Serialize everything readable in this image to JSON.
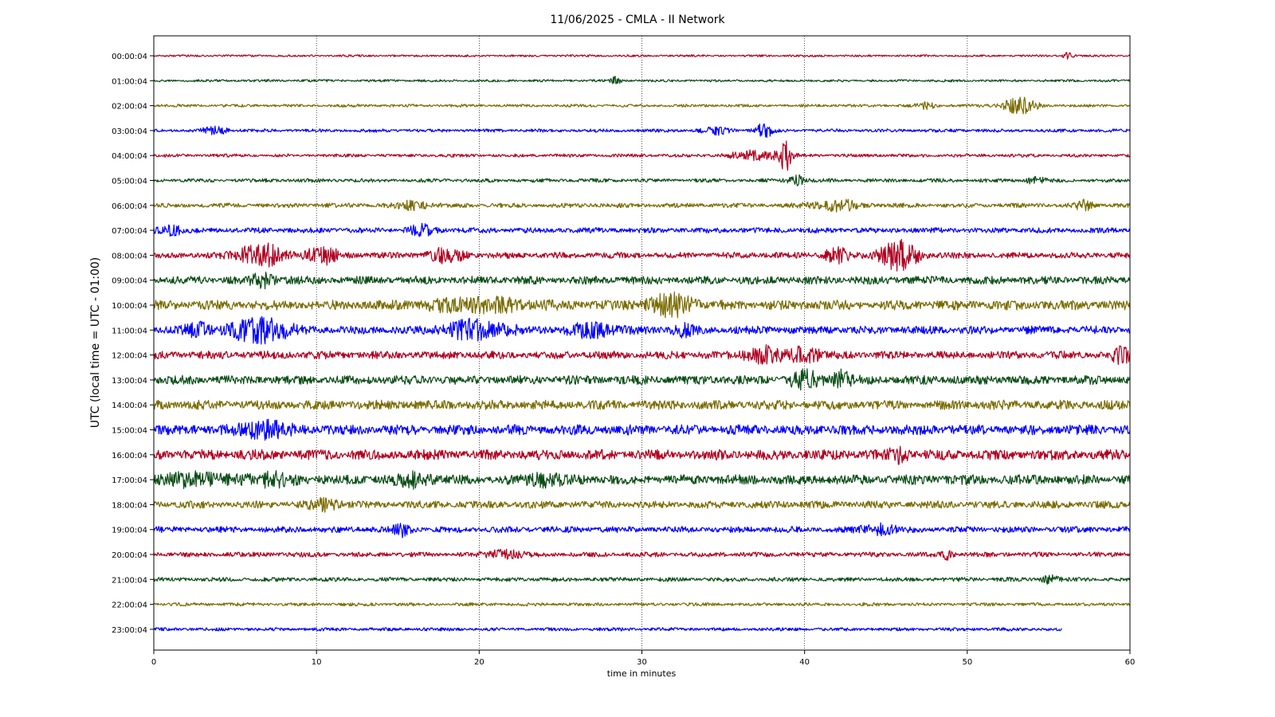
{
  "chart_data": {
    "type": "line",
    "title": "11/06/2025 - CMLA - II Network",
    "xlabel": "time in minutes",
    "ylabel": "UTC (local time = UTC - 01:00)",
    "xlim": [
      0,
      60
    ],
    "x_ticks": [
      "0",
      "10",
      "20",
      "30",
      "40",
      "50",
      "60"
    ],
    "grid": "vertical dotted lines at each x tick",
    "trace_colors": [
      "#b00020",
      "#0b4d16",
      "#7a6b00",
      "#0000ff"
    ],
    "rows": [
      {
        "label": "00:00:04",
        "color": "#b00020",
        "noise": 0.25,
        "end_minute": 60,
        "events": [
          {
            "minute": 56.2,
            "amp": 1.2,
            "width": 0.3
          }
        ]
      },
      {
        "label": "01:00:04",
        "color": "#0b4d16",
        "noise": 0.3,
        "end_minute": 60,
        "events": [
          {
            "minute": 28.4,
            "amp": 1.0,
            "width": 0.3
          }
        ]
      },
      {
        "label": "02:00:04",
        "color": "#7a6b00",
        "noise": 0.35,
        "end_minute": 60,
        "events": [
          {
            "minute": 47.5,
            "amp": 0.9,
            "width": 0.5
          },
          {
            "minute": 53.2,
            "amp": 2.4,
            "width": 1.0
          }
        ]
      },
      {
        "label": "03:00:04",
        "color": "#0000ff",
        "noise": 0.4,
        "end_minute": 60,
        "events": [
          {
            "minute": 3.8,
            "amp": 1.3,
            "width": 0.7
          },
          {
            "minute": 34.5,
            "amp": 1.1,
            "width": 0.8
          },
          {
            "minute": 37.5,
            "amp": 2.2,
            "width": 0.5
          }
        ]
      },
      {
        "label": "04:00:04",
        "color": "#b00020",
        "noise": 0.4,
        "end_minute": 60,
        "events": [
          {
            "minute": 37.0,
            "amp": 1.3,
            "width": 1.5
          },
          {
            "minute": 38.8,
            "amp": 4.5,
            "width": 0.4
          }
        ]
      },
      {
        "label": "05:00:04",
        "color": "#0b4d16",
        "noise": 0.45,
        "end_minute": 60,
        "events": [
          {
            "minute": 39.5,
            "amp": 1.6,
            "width": 0.5
          },
          {
            "minute": 54.2,
            "amp": 1.2,
            "width": 0.5
          }
        ]
      },
      {
        "label": "06:00:04",
        "color": "#7a6b00",
        "noise": 0.55,
        "end_minute": 60,
        "events": [
          {
            "minute": 16.0,
            "amp": 1.1,
            "width": 1.0
          },
          {
            "minute": 42.0,
            "amp": 1.4,
            "width": 1.5
          },
          {
            "minute": 57.2,
            "amp": 1.4,
            "width": 0.5
          }
        ]
      },
      {
        "label": "07:00:04",
        "color": "#0000ff",
        "noise": 0.65,
        "end_minute": 60,
        "events": [
          {
            "minute": 1.0,
            "amp": 1.2,
            "width": 0.8
          },
          {
            "minute": 16.5,
            "amp": 1.3,
            "width": 0.8
          }
        ]
      },
      {
        "label": "08:00:04",
        "color": "#b00020",
        "noise": 0.75,
        "end_minute": 60,
        "events": [
          {
            "minute": 6.5,
            "amp": 3.6,
            "width": 1.3
          },
          {
            "minute": 10.3,
            "amp": 2.4,
            "width": 1.0
          },
          {
            "minute": 18.0,
            "amp": 2.0,
            "width": 1.0
          },
          {
            "minute": 42.0,
            "amp": 1.8,
            "width": 0.8
          },
          {
            "minute": 45.8,
            "amp": 4.0,
            "width": 1.2
          }
        ]
      },
      {
        "label": "09:00:04",
        "color": "#0b4d16",
        "noise": 1.0,
        "end_minute": 60,
        "events": [
          {
            "minute": 6.8,
            "amp": 1.6,
            "width": 0.8
          }
        ]
      },
      {
        "label": "10:00:04",
        "color": "#7a6b00",
        "noise": 1.2,
        "end_minute": 60,
        "events": [
          {
            "minute": 31.8,
            "amp": 2.6,
            "width": 1.5
          },
          {
            "minute": 20.0,
            "amp": 1.5,
            "width": 3.0
          }
        ]
      },
      {
        "label": "11:00:04",
        "color": "#0000ff",
        "noise": 1.0,
        "end_minute": 60,
        "events": [
          {
            "minute": 2.8,
            "amp": 1.9,
            "width": 0.8
          },
          {
            "minute": 6.5,
            "amp": 3.4,
            "width": 1.8
          },
          {
            "minute": 19.8,
            "amp": 2.4,
            "width": 2.0
          },
          {
            "minute": 27.0,
            "amp": 1.6,
            "width": 1.5
          },
          {
            "minute": 32.5,
            "amp": 1.5,
            "width": 0.6
          }
        ]
      },
      {
        "label": "12:00:04",
        "color": "#b00020",
        "noise": 0.95,
        "end_minute": 60,
        "events": [
          {
            "minute": 37.5,
            "amp": 2.1,
            "width": 1.2
          },
          {
            "minute": 40.0,
            "amp": 2.0,
            "width": 1.0
          },
          {
            "minute": 59.5,
            "amp": 2.0,
            "width": 0.6
          }
        ]
      },
      {
        "label": "13:00:04",
        "color": "#0b4d16",
        "noise": 1.1,
        "end_minute": 60,
        "events": [
          {
            "minute": 40.0,
            "amp": 2.2,
            "width": 1.0
          },
          {
            "minute": 42.3,
            "amp": 2.5,
            "width": 0.6
          }
        ]
      },
      {
        "label": "14:00:04",
        "color": "#7a6b00",
        "noise": 1.15,
        "end_minute": 60,
        "events": []
      },
      {
        "label": "15:00:04",
        "color": "#0000ff",
        "noise": 1.25,
        "end_minute": 60,
        "events": [
          {
            "minute": 6.8,
            "amp": 2.1,
            "width": 1.5
          }
        ]
      },
      {
        "label": "16:00:04",
        "color": "#b00020",
        "noise": 1.25,
        "end_minute": 60,
        "events": [
          {
            "minute": 45.8,
            "amp": 1.6,
            "width": 0.6
          }
        ]
      },
      {
        "label": "17:00:04",
        "color": "#0b4d16",
        "noise": 1.2,
        "end_minute": 60,
        "events": [
          {
            "minute": 2.5,
            "amp": 1.7,
            "width": 1.5
          },
          {
            "minute": 7.0,
            "amp": 1.5,
            "width": 1.5
          },
          {
            "minute": 16.0,
            "amp": 1.6,
            "width": 1.0
          },
          {
            "minute": 24.0,
            "amp": 1.6,
            "width": 1.0
          }
        ]
      },
      {
        "label": "18:00:04",
        "color": "#7a6b00",
        "noise": 0.9,
        "end_minute": 60,
        "events": [
          {
            "minute": 10.5,
            "amp": 1.3,
            "width": 1.0
          }
        ]
      },
      {
        "label": "19:00:04",
        "color": "#0000ff",
        "noise": 0.75,
        "end_minute": 60,
        "events": [
          {
            "minute": 15.3,
            "amp": 1.8,
            "width": 0.5
          },
          {
            "minute": 44.5,
            "amp": 1.5,
            "width": 1.0
          }
        ]
      },
      {
        "label": "20:00:04",
        "color": "#b00020",
        "noise": 0.6,
        "end_minute": 60,
        "events": [
          {
            "minute": 21.5,
            "amp": 1.3,
            "width": 1.0
          },
          {
            "minute": 48.8,
            "amp": 1.4,
            "width": 0.3
          }
        ]
      },
      {
        "label": "21:00:04",
        "color": "#0b4d16",
        "noise": 0.5,
        "end_minute": 60,
        "events": [
          {
            "minute": 55.0,
            "amp": 1.3,
            "width": 0.5
          }
        ]
      },
      {
        "label": "22:00:04",
        "color": "#7a6b00",
        "noise": 0.4,
        "end_minute": 60,
        "events": []
      },
      {
        "label": "23:00:04",
        "color": "#0000ff",
        "noise": 0.4,
        "end_minute": 55.8,
        "events": []
      }
    ]
  }
}
